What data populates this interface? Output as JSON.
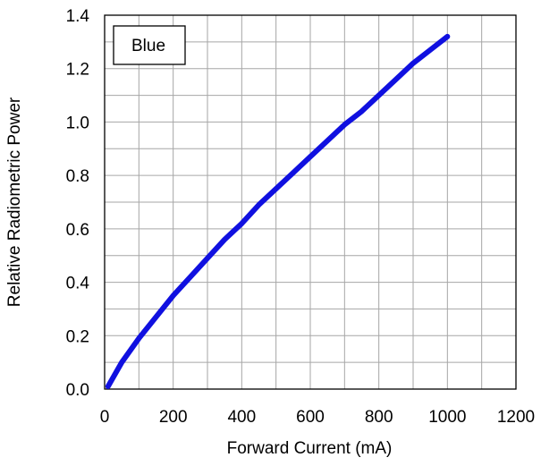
{
  "chart_data": {
    "type": "line",
    "xlabel": "Forward Current (mA)",
    "ylabel": "Relative Radiometric Power",
    "xlim": [
      0,
      1200
    ],
    "ylim": [
      0,
      1.4
    ],
    "x_minor_step": 100,
    "y_minor_step": 0.1,
    "x_ticks": [
      "0",
      "200",
      "400",
      "600",
      "800",
      "1000",
      "1200"
    ],
    "y_ticks": [
      "0.0",
      "0.2",
      "0.4",
      "0.6",
      "0.8",
      "1.0",
      "1.2",
      "1.4"
    ],
    "grid": true,
    "legend": {
      "label": "Blue",
      "placement": "top-left"
    },
    "series": [
      {
        "name": "Blue",
        "color": "#1010e0",
        "x": [
          10,
          50,
          100,
          150,
          200,
          250,
          300,
          350,
          400,
          450,
          500,
          550,
          600,
          650,
          700,
          750,
          800,
          850,
          900,
          950,
          1000
        ],
        "y": [
          0.01,
          0.1,
          0.19,
          0.27,
          0.35,
          0.42,
          0.49,
          0.56,
          0.62,
          0.69,
          0.75,
          0.81,
          0.87,
          0.93,
          0.99,
          1.04,
          1.1,
          1.16,
          1.22,
          1.27,
          1.32
        ]
      }
    ]
  }
}
